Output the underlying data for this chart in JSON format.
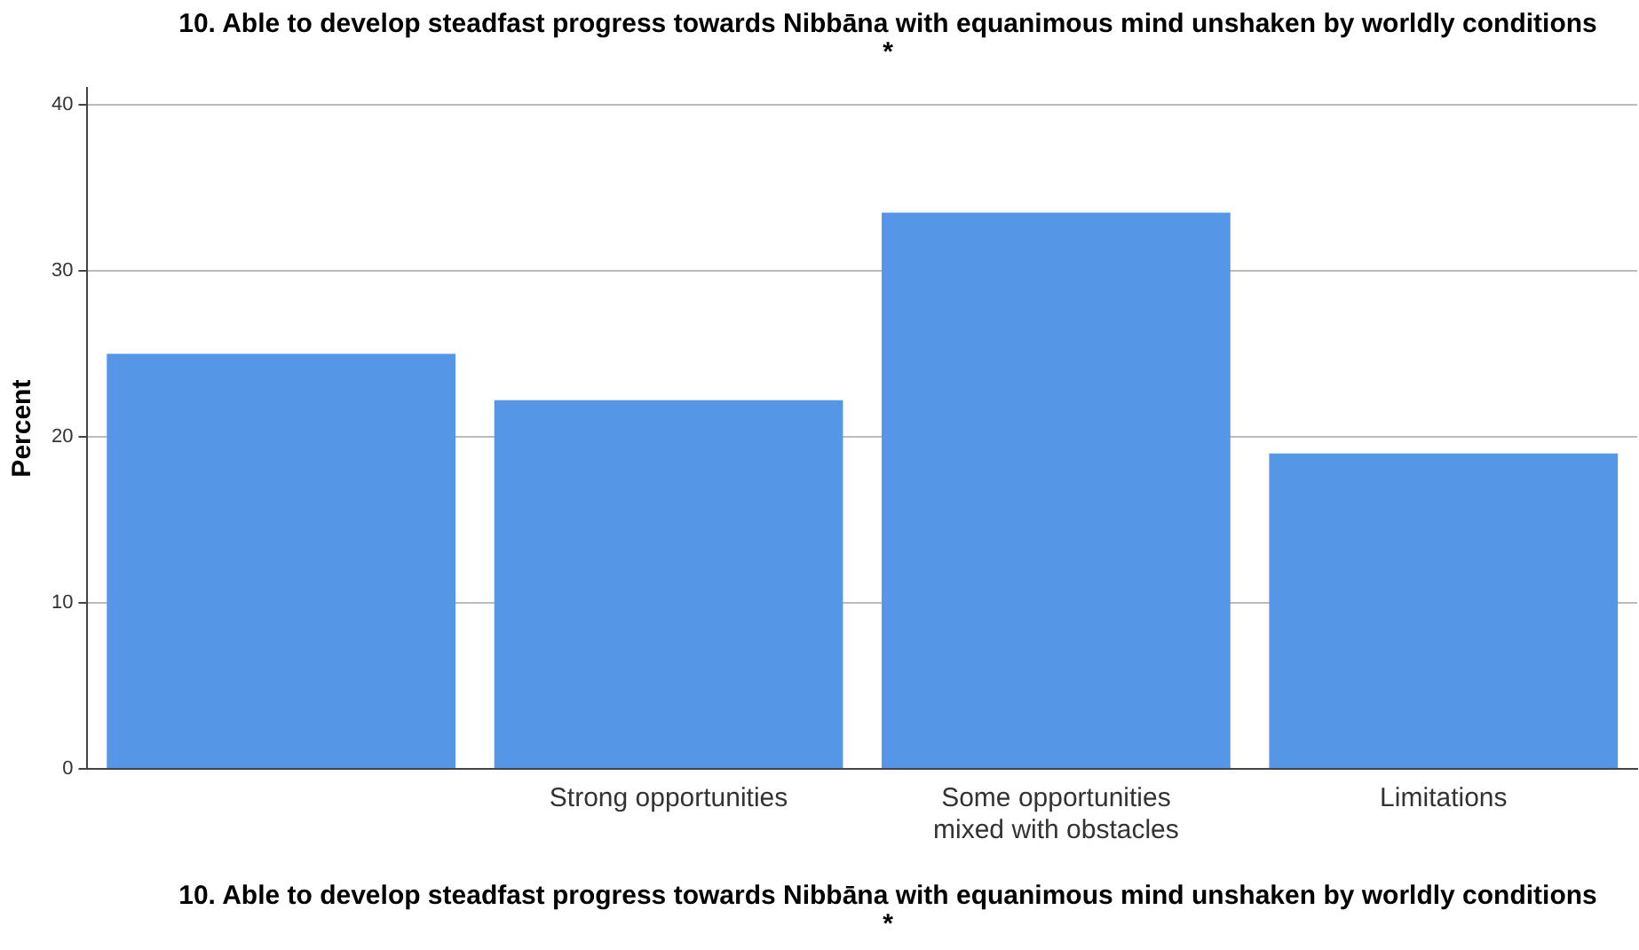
{
  "chart_data": {
    "type": "bar",
    "title": "10. Able to develop steadfast progress towards Nibbāna with equanimous mind unshaken by worldly conditions *",
    "xlabel": "10. Able to develop steadfast progress towards Nibbāna with equanimous mind unshaken by worldly conditions *",
    "ylabel": "Percent",
    "categories": [
      null,
      "Strong opportunities",
      "Some opportunities mixed with obstacles",
      "Limitations"
    ],
    "values": [
      25.0,
      22.2,
      33.5,
      19.0
    ],
    "color": "#5596e6",
    "ylim": [
      0,
      41
    ],
    "yticks": [
      0,
      10,
      20,
      30,
      40
    ],
    "grid": "y",
    "legend": false
  }
}
